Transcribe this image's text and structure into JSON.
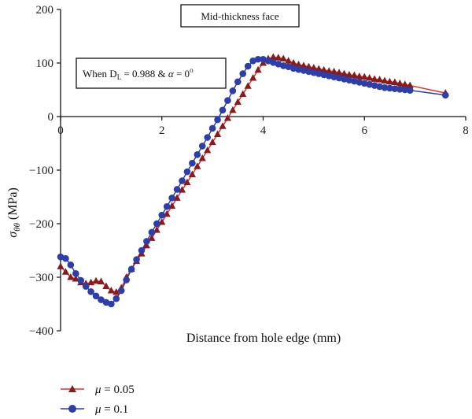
{
  "chart_data": {
    "type": "line",
    "title": "Mid-thickness face",
    "annotation": {
      "prefix": "When D",
      "subscript": "L",
      "middle": " = 0.988 & ",
      "alpha": "α",
      "suffix": " = 0",
      "superscript": "o"
    },
    "xlabel": "Distance from hole edge (mm)",
    "ylabel": {
      "sigma": "σ",
      "subscript": "θθ",
      "unit": " (MPa)"
    },
    "xlim": [
      0,
      8
    ],
    "ylim": [
      -400,
      200
    ],
    "xticks": [
      0,
      2,
      4,
      6,
      8
    ],
    "yticks": [
      200,
      100,
      0,
      -100,
      -200,
      -300,
      -400
    ],
    "ytick_labels": [
      "200",
      "100",
      "0",
      "−100",
      "−200",
      "−300",
      "−400"
    ],
    "grid": false,
    "legend_position": "bottom-left",
    "series": [
      {
        "name": "μ = 0.05",
        "legend_prefix": "μ",
        "legend_suffix": " = 0.05",
        "color": "#e0312f",
        "marker_color": "#8b1a1a",
        "marker": "triangle",
        "x": [
          0,
          0.1,
          0.2,
          0.3,
          0.4,
          0.5,
          0.6,
          0.7,
          0.8,
          0.9,
          1.0,
          1.1,
          1.2,
          1.3,
          1.4,
          1.5,
          1.6,
          1.7,
          1.8,
          1.9,
          2.0,
          2.1,
          2.2,
          2.3,
          2.4,
          2.5,
          2.6,
          2.7,
          2.8,
          2.9,
          3.0,
          3.1,
          3.2,
          3.3,
          3.4,
          3.5,
          3.6,
          3.7,
          3.8,
          3.9,
          4.0,
          4.1,
          4.2,
          4.3,
          4.4,
          4.5,
          4.6,
          4.7,
          4.8,
          4.9,
          5.0,
          5.1,
          5.2,
          5.3,
          5.4,
          5.5,
          5.6,
          5.7,
          5.8,
          5.9,
          6.0,
          6.1,
          6.2,
          6.3,
          6.4,
          6.5,
          6.6,
          6.7,
          6.8,
          6.9,
          7.6
        ],
        "y": [
          -280,
          -290,
          -300,
          -303,
          -310,
          -312,
          -310,
          -307,
          -308,
          -317,
          -325,
          -328,
          -320,
          -300,
          -285,
          -270,
          -256,
          -241,
          -227,
          -212,
          -197,
          -182,
          -167,
          -152,
          -137,
          -123,
          -108,
          -93,
          -78,
          -63,
          -48,
          -33,
          -18,
          -3,
          12,
          27,
          42,
          57,
          72,
          87,
          100,
          108,
          111,
          110,
          108,
          104,
          100,
          97,
          95,
          93,
          91,
          89,
          87,
          85,
          84,
          82,
          80,
          78,
          77,
          75,
          74,
          72,
          70,
          69,
          67,
          65,
          64,
          62,
          60,
          58,
          44
        ]
      },
      {
        "name": "μ = 0.1",
        "legend_prefix": "μ",
        "legend_suffix": " = 0.1",
        "color": "#2e3ea8",
        "marker_color": "#2e3ea8",
        "marker": "circle",
        "x": [
          0,
          0.1,
          0.2,
          0.3,
          0.4,
          0.5,
          0.6,
          0.7,
          0.8,
          0.9,
          1.0,
          1.1,
          1.2,
          1.3,
          1.4,
          1.5,
          1.6,
          1.7,
          1.8,
          1.9,
          2.0,
          2.1,
          2.2,
          2.3,
          2.4,
          2.5,
          2.6,
          2.7,
          2.8,
          2.9,
          3.0,
          3.1,
          3.2,
          3.3,
          3.4,
          3.5,
          3.6,
          3.7,
          3.8,
          3.9,
          4.0,
          4.1,
          4.2,
          4.3,
          4.4,
          4.5,
          4.6,
          4.7,
          4.8,
          4.9,
          5.0,
          5.1,
          5.2,
          5.3,
          5.4,
          5.5,
          5.6,
          5.7,
          5.8,
          5.9,
          6.0,
          6.1,
          6.2,
          6.3,
          6.4,
          6.5,
          6.6,
          6.7,
          6.8,
          6.9,
          7.6
        ],
        "y": [
          -262,
          -265,
          -277,
          -293,
          -306,
          -317,
          -327,
          -335,
          -342,
          -347,
          -350,
          -340,
          -325,
          -305,
          -285,
          -267,
          -250,
          -233,
          -216,
          -200,
          -184,
          -168,
          -152,
          -136,
          -120,
          -103,
          -87,
          -71,
          -55,
          -39,
          -22,
          -6,
          12,
          30,
          48,
          65,
          80,
          94,
          104,
          107,
          107,
          104,
          101,
          98,
          95,
          93,
          90,
          88,
          86,
          84,
          82,
          80,
          78,
          76,
          74,
          72,
          70,
          68,
          66,
          64,
          62,
          60,
          58,
          56,
          54,
          53,
          52,
          51,
          50,
          49,
          40
        ]
      }
    ]
  }
}
